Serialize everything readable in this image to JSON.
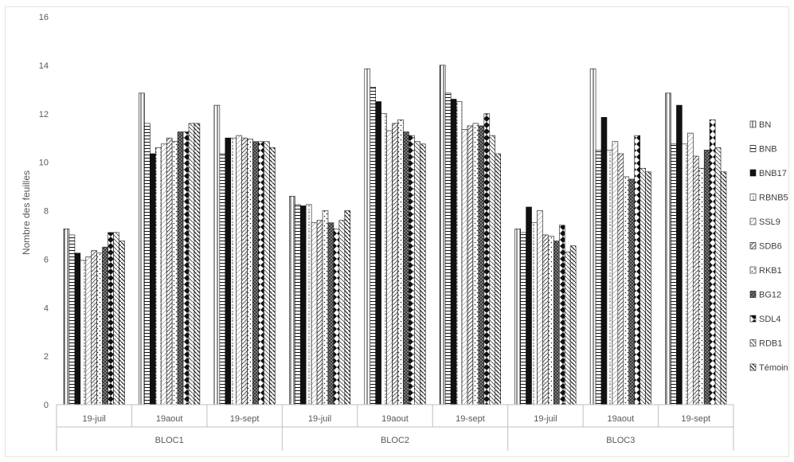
{
  "chart_data": {
    "type": "bar",
    "ylabel": "Nombre des feuilles",
    "ylim": [
      0,
      16
    ],
    "yticks": [
      "0",
      "2",
      "4",
      "6",
      "8",
      "10",
      "12",
      "14",
      "16"
    ],
    "gridlines": false,
    "legend_position": "right",
    "categories": [
      "19-juil",
      "19aout",
      "19-sept",
      "19-juil",
      "19aout",
      "19-sept",
      "19-juil",
      "19aout",
      "19-sept"
    ],
    "groups": [
      {
        "label": "BLOC1",
        "categories": [
          "19-juil",
          "19aout",
          "19-sept"
        ]
      },
      {
        "label": "BLOC2",
        "categories": [
          "19-juil",
          "19aout",
          "19-sept"
        ]
      },
      {
        "label": "BLOC3",
        "categories": [
          "19-juil",
          "19aout",
          "19-sept"
        ]
      }
    ],
    "series": [
      {
        "name": "BN",
        "values": [
          7.25,
          12.85,
          12.35,
          8.6,
          13.85,
          14.0,
          7.25,
          13.85,
          12.85
        ]
      },
      {
        "name": "BNB",
        "values": [
          7.0,
          11.6,
          10.35,
          8.25,
          13.1,
          12.85,
          7.1,
          10.5,
          10.75
        ]
      },
      {
        "name": "BNB17",
        "values": [
          6.25,
          10.35,
          11.0,
          8.2,
          12.5,
          12.6,
          8.15,
          11.85,
          12.35
        ]
      },
      {
        "name": "RBNB5",
        "values": [
          5.95,
          10.6,
          11.0,
          8.25,
          12.0,
          12.5,
          7.5,
          10.5,
          10.75
        ]
      },
      {
        "name": "SSL9",
        "values": [
          6.1,
          10.75,
          11.1,
          7.5,
          11.3,
          11.35,
          8.0,
          10.85,
          11.2
        ]
      },
      {
        "name": "SDB6",
        "values": [
          6.35,
          11.0,
          11.0,
          7.6,
          11.6,
          11.5,
          7.0,
          10.35,
          10.25
        ]
      },
      {
        "name": "RKB1",
        "values": [
          6.25,
          10.85,
          10.95,
          8.0,
          11.75,
          11.6,
          6.95,
          9.4,
          9.75
        ]
      },
      {
        "name": "BG12",
        "values": [
          6.5,
          11.25,
          10.85,
          7.5,
          11.25,
          11.5,
          6.75,
          9.3,
          10.5
        ]
      },
      {
        "name": "SDL4",
        "values": [
          7.1,
          11.25,
          10.85,
          7.25,
          11.1,
          12.0,
          7.4,
          11.1,
          11.75
        ]
      },
      {
        "name": "RDB1",
        "values": [
          7.1,
          11.6,
          10.85,
          7.6,
          10.85,
          11.1,
          6.3,
          9.75,
          10.6
        ]
      },
      {
        "name": "Témoin",
        "values": [
          6.75,
          11.6,
          10.6,
          8.0,
          10.75,
          10.35,
          6.55,
          9.6,
          9.6
        ]
      }
    ]
  }
}
